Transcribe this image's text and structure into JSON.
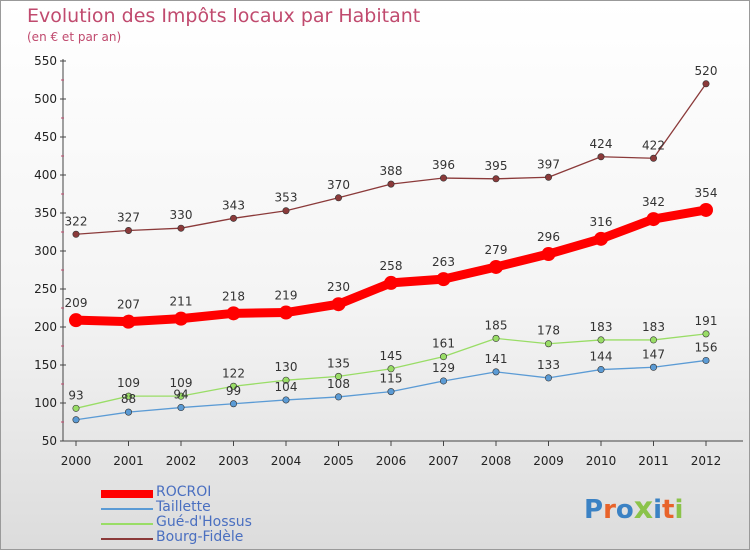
{
  "header": {
    "title": "Evolution des Impôts locaux par Habitant",
    "subtitle": "(en € et par an)"
  },
  "logo": {
    "text": "Proxiti",
    "colors": [
      "#3b82c4",
      "#e8632a",
      "#3b82c4",
      "#8bc34a",
      "#3b82c4",
      "#e8632a",
      "#8bc34a"
    ]
  },
  "chart_data": {
    "type": "line",
    "title": "Evolution des Impôts locaux par Habitant",
    "subtitle": "(en € et par an)",
    "x": [
      "2000",
      "2001",
      "2002",
      "2003",
      "2004",
      "2005",
      "2006",
      "2007",
      "2008",
      "2009",
      "2010",
      "2011",
      "2012"
    ],
    "ylim": [
      50,
      550
    ],
    "yticks": [
      50,
      100,
      150,
      200,
      250,
      300,
      350,
      400,
      450,
      500,
      550
    ],
    "grid": false,
    "legend_position": "bottom-left",
    "series": [
      {
        "name": "ROCROI",
        "color": "#ff0000",
        "values": [
          209,
          207,
          211,
          218,
          219,
          230,
          258,
          263,
          279,
          296,
          316,
          342,
          354
        ]
      },
      {
        "name": "Taillette",
        "color": "#5b9bd5",
        "values": [
          78,
          88,
          94,
          99,
          104,
          108,
          115,
          129,
          141,
          133,
          144,
          147,
          156
        ],
        "labels": [
          "",
          "88",
          "94",
          "99",
          "104",
          "108",
          "115",
          "129",
          "141",
          "133",
          "144",
          "147",
          "156"
        ]
      },
      {
        "name": "Gué-d'Hossus",
        "color": "#99dd66",
        "values": [
          93,
          109,
          109,
          122,
          130,
          135,
          145,
          161,
          185,
          178,
          183,
          183,
          191
        ]
      },
      {
        "name": "Bourg-Fidèle",
        "color": "#8b3a3a",
        "values": [
          322,
          327,
          330,
          343,
          353,
          370,
          388,
          396,
          395,
          397,
          424,
          422,
          520
        ]
      }
    ]
  }
}
